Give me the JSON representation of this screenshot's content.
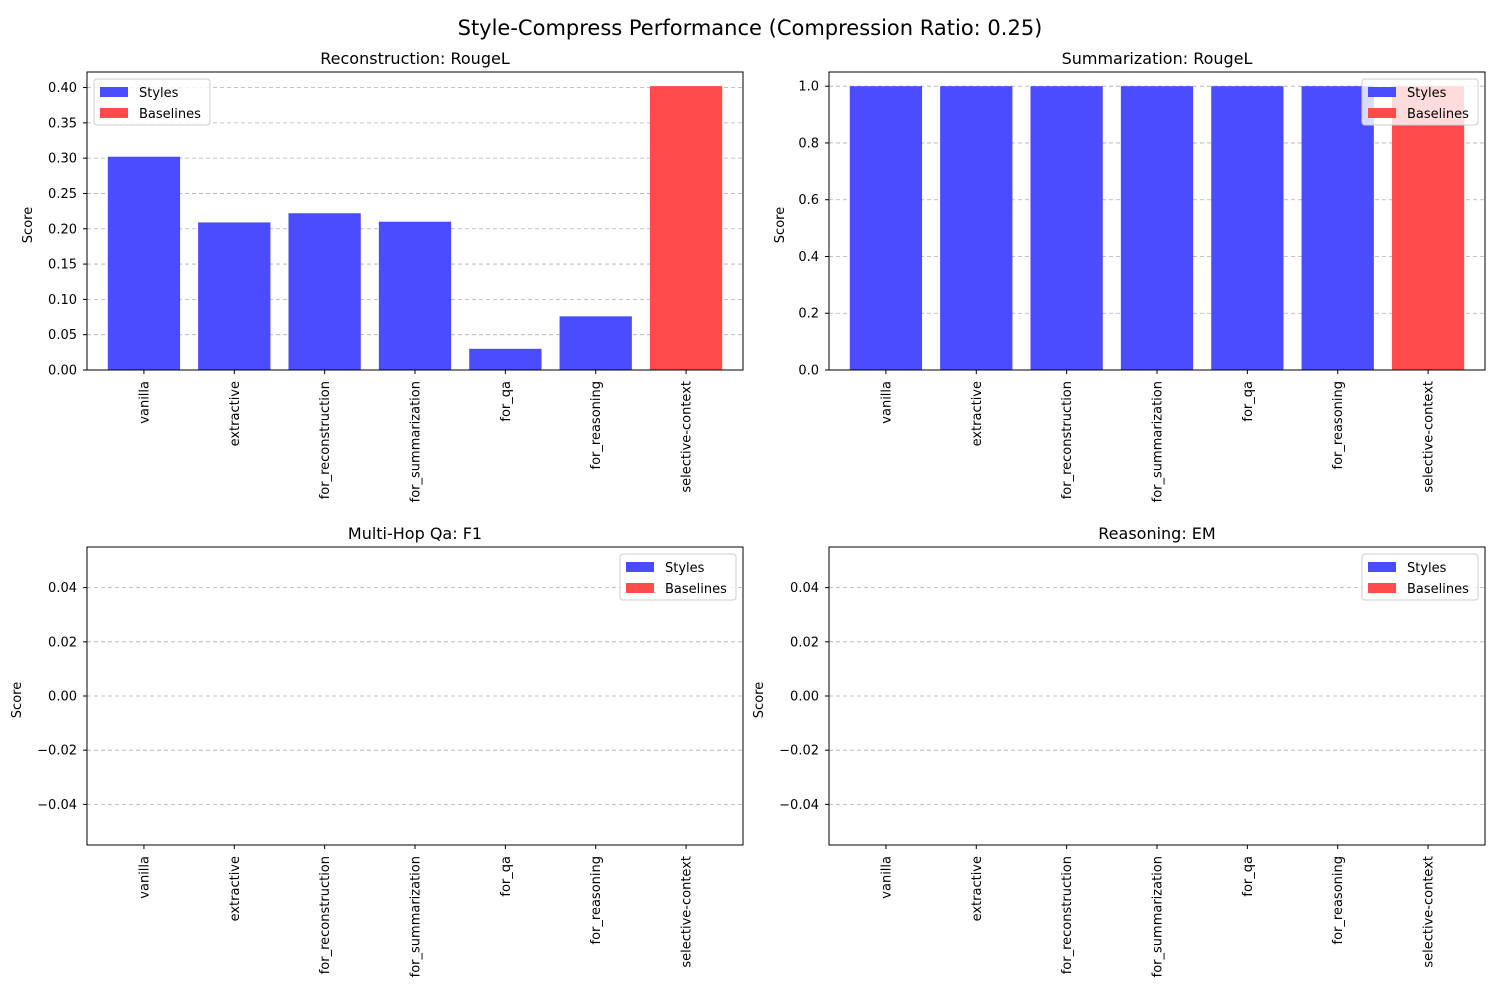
{
  "title": "Style-Compress Performance (Compression Ratio: 0.25)",
  "legend": {
    "styles_label": "Styles",
    "baselines_label": "Baselines"
  },
  "colors": {
    "styles": "#4b4bff",
    "baselines": "#ff4b4b"
  },
  "chart_data": [
    {
      "type": "bar",
      "title": "Reconstruction: RougeL",
      "ylabel": "Score",
      "categories": [
        "vanilla",
        "extractive",
        "for_reconstruction",
        "for_summarization",
        "for_qa",
        "for_reasoning",
        "selective-context"
      ],
      "series": [
        {
          "name": "Styles",
          "values": [
            0.302,
            0.209,
            0.222,
            0.21,
            0.03,
            0.076,
            null
          ]
        },
        {
          "name": "Baselines",
          "values": [
            null,
            null,
            null,
            null,
            null,
            null,
            0.402
          ]
        }
      ],
      "ylim": [
        0,
        0.422
      ],
      "yticks": [
        "0.00",
        "0.05",
        "0.10",
        "0.15",
        "0.20",
        "0.25",
        "0.30",
        "0.35",
        "0.40"
      ],
      "ytick_values": [
        0,
        0.05,
        0.1,
        0.15,
        0.2,
        0.25,
        0.3,
        0.35,
        0.4
      ],
      "grid": true,
      "legend_position": "upper-left"
    },
    {
      "type": "bar",
      "title": "Summarization: RougeL",
      "ylabel": "Score",
      "categories": [
        "vanilla",
        "extractive",
        "for_reconstruction",
        "for_summarization",
        "for_qa",
        "for_reasoning",
        "selective-context"
      ],
      "series": [
        {
          "name": "Styles",
          "values": [
            1.0,
            1.0,
            1.0,
            1.0,
            1.0,
            1.0,
            null
          ]
        },
        {
          "name": "Baselines",
          "values": [
            null,
            null,
            null,
            null,
            null,
            null,
            1.0
          ]
        }
      ],
      "ylim": [
        0,
        1.05
      ],
      "yticks": [
        "0.0",
        "0.2",
        "0.4",
        "0.6",
        "0.8",
        "1.0"
      ],
      "ytick_values": [
        0,
        0.2,
        0.4,
        0.6,
        0.8,
        1.0
      ],
      "grid": true,
      "legend_position": "upper-right"
    },
    {
      "type": "bar",
      "title": "Multi-Hop Qa: F1",
      "ylabel": "Score",
      "categories": [
        "vanilla",
        "extractive",
        "for_reconstruction",
        "for_summarization",
        "for_qa",
        "for_reasoning",
        "selective-context"
      ],
      "series": [
        {
          "name": "Styles",
          "values": [
            0,
            0,
            0,
            0,
            0,
            0,
            null
          ]
        },
        {
          "name": "Baselines",
          "values": [
            null,
            null,
            null,
            null,
            null,
            null,
            0
          ]
        }
      ],
      "ylim": [
        -0.055,
        0.055
      ],
      "yticks": [
        "−0.04",
        "−0.02",
        "0.00",
        "0.02",
        "0.04"
      ],
      "ytick_values": [
        -0.04,
        -0.02,
        0,
        0.02,
        0.04
      ],
      "grid": true,
      "legend_position": "upper-right"
    },
    {
      "type": "bar",
      "title": "Reasoning: EM",
      "ylabel": "Score",
      "categories": [
        "vanilla",
        "extractive",
        "for_reconstruction",
        "for_summarization",
        "for_qa",
        "for_reasoning",
        "selective-context"
      ],
      "series": [
        {
          "name": "Styles",
          "values": [
            0,
            0,
            0,
            0,
            0,
            0,
            null
          ]
        },
        {
          "name": "Baselines",
          "values": [
            null,
            null,
            null,
            null,
            null,
            null,
            0
          ]
        }
      ],
      "ylim": [
        -0.055,
        0.055
      ],
      "yticks": [
        "−0.04",
        "−0.02",
        "0.00",
        "0.02",
        "0.04"
      ],
      "ytick_values": [
        -0.04,
        -0.02,
        0,
        0.02,
        0.04
      ],
      "grid": true,
      "legend_position": "upper-right"
    }
  ]
}
